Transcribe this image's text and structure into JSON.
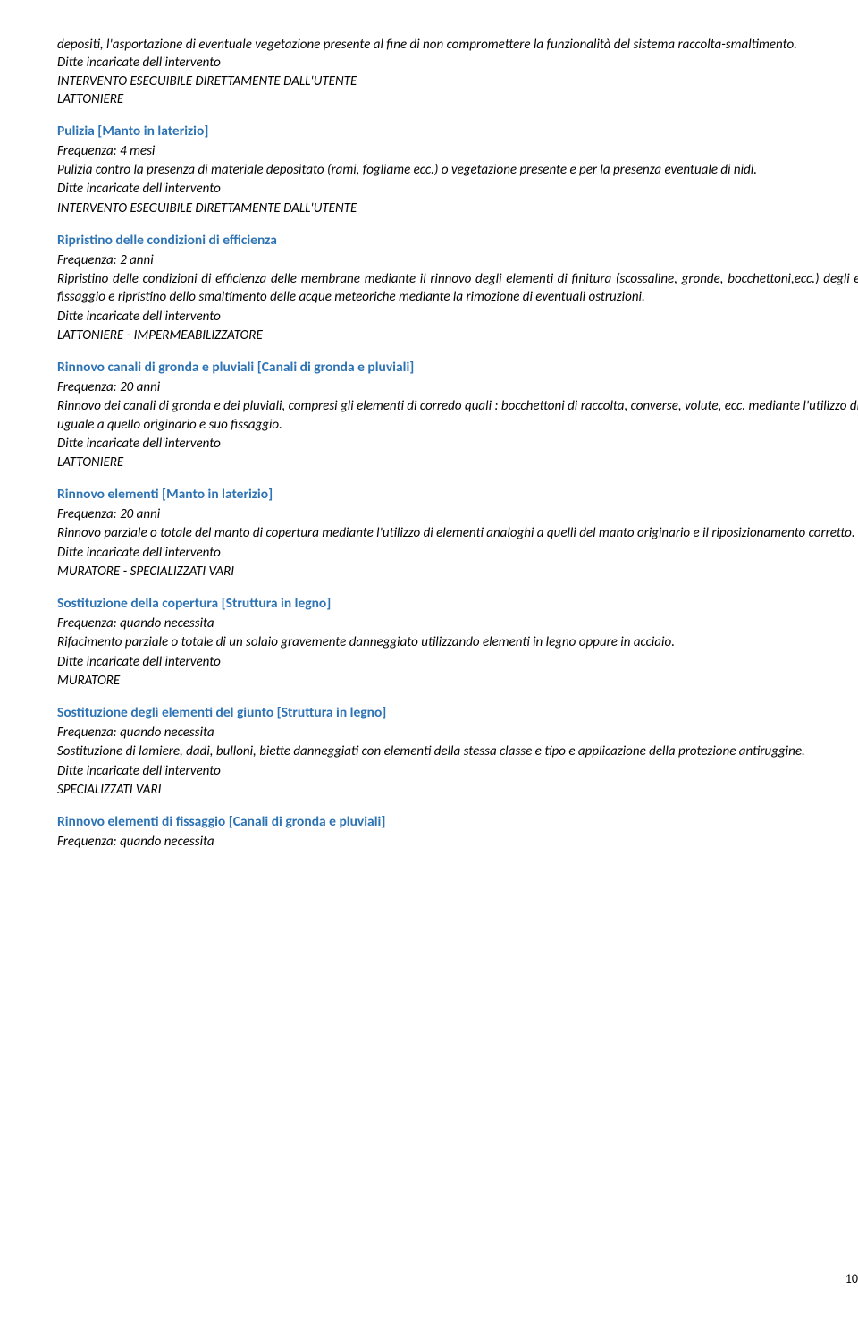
{
  "colors": {
    "heading": "#2e74b5",
    "text": "#000000",
    "background": "#ffffff"
  },
  "typography": {
    "body_font": "Calibri, Arial, sans-serif",
    "body_size_pt": 11,
    "heading_size_pt": 11.5,
    "heading_weight": "bold"
  },
  "top": {
    "para1": "depositi, l'asportazione di eventuale vegetazione presente al fine di non compromettere la funzionalità del sistema raccolta-smaltimento.",
    "ditte_label": "Ditte incaricate dell'intervento",
    "intervento": "INTERVENTO ESEGUIBILE DIRETTAMENTE DALL'UTENTE",
    "ditte_value": "LATTONIERE"
  },
  "sections": [
    {
      "title": "Pulizia [Manto in laterizio]",
      "freq": "Frequenza: 4 mesi",
      "desc": "Pulizia contro la presenza di materiale depositato (rami, fogliame ecc.) o vegetazione presente e per la presenza eventuale di nidi.",
      "ditte_label": "Ditte incaricate dell'intervento",
      "ditte_value": "INTERVENTO ESEGUIBILE DIRETTAMENTE DALL'UTENTE"
    },
    {
      "title": "Ripristino delle condizioni di efficienza",
      "freq": "Frequenza: 2 anni",
      "desc": "Ripristino delle condizioni di efficienza delle membrane mediante il rinnovo degli elementi di finitura (scossaline, gronde, bocchettoni,ecc.) degli elementi di fissaggio e ripristino dello smaltimento delle acque meteoriche mediante la rimozione di eventuali ostruzioni.",
      "ditte_label": "Ditte incaricate dell'intervento",
      "ditte_value": "LATTONIERE - IMPERMEABILIZZATORE"
    },
    {
      "title": "Rinnovo canali di gronda e pluviali [Canali di gronda e pluviali]",
      "freq": "Frequenza: 20 anni",
      "desc": "Rinnovo dei canali di gronda e dei pluviali, compresi gli elementi di corredo quali : bocchettoni di raccolta, converse, volute, ecc. mediante l'utilizzo di materiale uguale a quello originario e suo fissaggio.",
      "ditte_label": "Ditte incaricate dell'intervento",
      "ditte_value": "LATTONIERE"
    },
    {
      "title": "Rinnovo elementi [Manto in laterizio]",
      "freq": "Frequenza: 20 anni",
      "desc": "Rinnovo parziale o totale del manto di copertura mediante l'utilizzo di elementi analoghi a quelli del manto originario e il riposizionamento corretto.",
      "ditte_label": "Ditte incaricate dell'intervento",
      "ditte_value": "MURATORE - SPECIALIZZATI VARI"
    },
    {
      "title": "Sostituzione della copertura [Struttura in legno]",
      "freq": "Frequenza: quando necessita",
      "desc": "Rifacimento parziale o totale di un solaio gravemente danneggiato utilizzando elementi in legno oppure in acciaio.",
      "ditte_label": "Ditte incaricate dell'intervento",
      "ditte_value": "MURATORE"
    },
    {
      "title": "Sostituzione degli elementi del giunto [Struttura in legno]",
      "freq": "Frequenza: quando necessita",
      "desc": "Sostituzione di lamiere, dadi, bulloni, biette danneggiati con elementi della stessa classe e tipo e applicazione della protezione antiruggine.",
      "ditte_label": "Ditte incaricate dell'intervento",
      "ditte_value": "SPECIALIZZATI VARI"
    },
    {
      "title": "Rinnovo elementi di fissaggio [Canali di gronda e pluviali]",
      "freq": "Frequenza: quando necessita",
      "desc": "",
      "ditte_label": "",
      "ditte_value": ""
    }
  ],
  "page_number": "10"
}
